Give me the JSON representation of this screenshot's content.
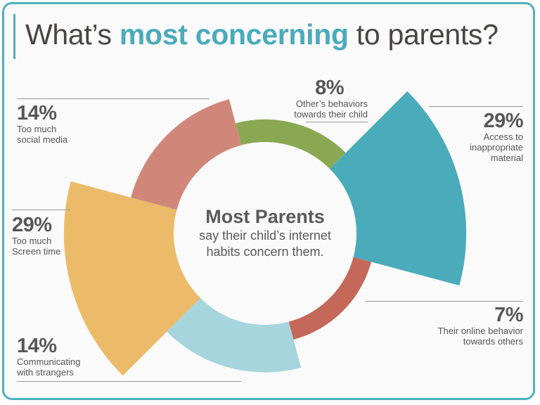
{
  "title": {
    "prefix": "What’s ",
    "highlight": "most concerning",
    "suffix": " to parents?"
  },
  "center": {
    "headline": "Most Parents",
    "line1": "say their child’s internet",
    "line2": "habits concern them."
  },
  "colors": {
    "frame": "#4fb0bf",
    "accent": "#4aabbb",
    "text": "#555555"
  },
  "chart_data": {
    "type": "polar-area",
    "title": "What’s most concerning to parents?",
    "categories": [
      "Other’s behaviors towards their child",
      "Access to inappropriate material",
      "Their online behavior towards others",
      "Communicating with strangers",
      "Too much Screen time",
      "Too much social media"
    ],
    "values": [
      8,
      29,
      7,
      14,
      29,
      14
    ],
    "unit": "%",
    "colors": [
      "#8aa852",
      "#4aabbb",
      "#c4695a",
      "#a6d5de",
      "#ebbb69",
      "#d0877a"
    ],
    "labels": [
      {
        "pct": "8%",
        "line1": "Other’s behaviors",
        "line2": "towards their child"
      },
      {
        "pct": "29%",
        "line1": "Access to",
        "line2": "inappropriate",
        "line3": "material"
      },
      {
        "pct": "7%",
        "line1": "Their online behavior",
        "line2": "towards others"
      },
      {
        "pct": "14%",
        "line1": "Communicating",
        "line2": "with strangers"
      },
      {
        "pct": "29%",
        "line1": "Too much",
        "line2": "Screen time"
      },
      {
        "pct": "14%",
        "line1": "Too much",
        "line2": "social media"
      }
    ]
  }
}
